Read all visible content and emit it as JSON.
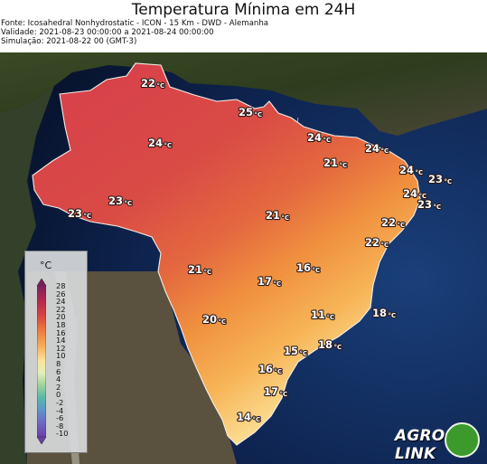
{
  "header": {
    "title": "Temperatura Mínima em 24H",
    "source": "Fonte: Icosahedral Nonhydrostatic - ICON - 15 Km - DWD - Alemanha",
    "validity": "Validade: 2021-08-23 00:00:00 a 2021-08-24 00:00:00",
    "simulation": "Simulação: 2021-08-22 00 (GMT-3)"
  },
  "legend": {
    "unit": "°C",
    "ticks": [
      "28",
      "26",
      "24",
      "22",
      "20",
      "18",
      "16",
      "14",
      "12",
      "10",
      "8",
      "6",
      "4",
      "2",
      "0",
      "-2",
      "-4",
      "-6",
      "-8",
      "-10"
    ]
  },
  "labels": [
    {
      "value": "22",
      "unit": "°C"
    },
    {
      "value": "25",
      "unit": "°C"
    },
    {
      "value": "24",
      "unit": "°C"
    },
    {
      "value": "24",
      "unit": "°C"
    },
    {
      "value": "24",
      "unit": "°C"
    },
    {
      "value": "21",
      "unit": "°C"
    },
    {
      "value": "24",
      "unit": "°C"
    },
    {
      "value": "23",
      "unit": "°C"
    },
    {
      "value": "24",
      "unit": "°C"
    },
    {
      "value": "23",
      "unit": "°C"
    },
    {
      "value": "23",
      "unit": "°C"
    },
    {
      "value": "23",
      "unit": "°C"
    },
    {
      "value": "21",
      "unit": "°C"
    },
    {
      "value": "22",
      "unit": "°C"
    },
    {
      "value": "22",
      "unit": "°C"
    },
    {
      "value": "21",
      "unit": "°C"
    },
    {
      "value": "16",
      "unit": "°C"
    },
    {
      "value": "17",
      "unit": "°C"
    },
    {
      "value": "11",
      "unit": "°C"
    },
    {
      "value": "18",
      "unit": "°C"
    },
    {
      "value": "20",
      "unit": "°C"
    },
    {
      "value": "18",
      "unit": "°C"
    },
    {
      "value": "15",
      "unit": "°C"
    },
    {
      "value": "16",
      "unit": "°C"
    },
    {
      "value": "17",
      "unit": "°C"
    },
    {
      "value": "14",
      "unit": "°C"
    }
  ],
  "logo": {
    "part1": "AGRO",
    "part2": "LINK"
  }
}
